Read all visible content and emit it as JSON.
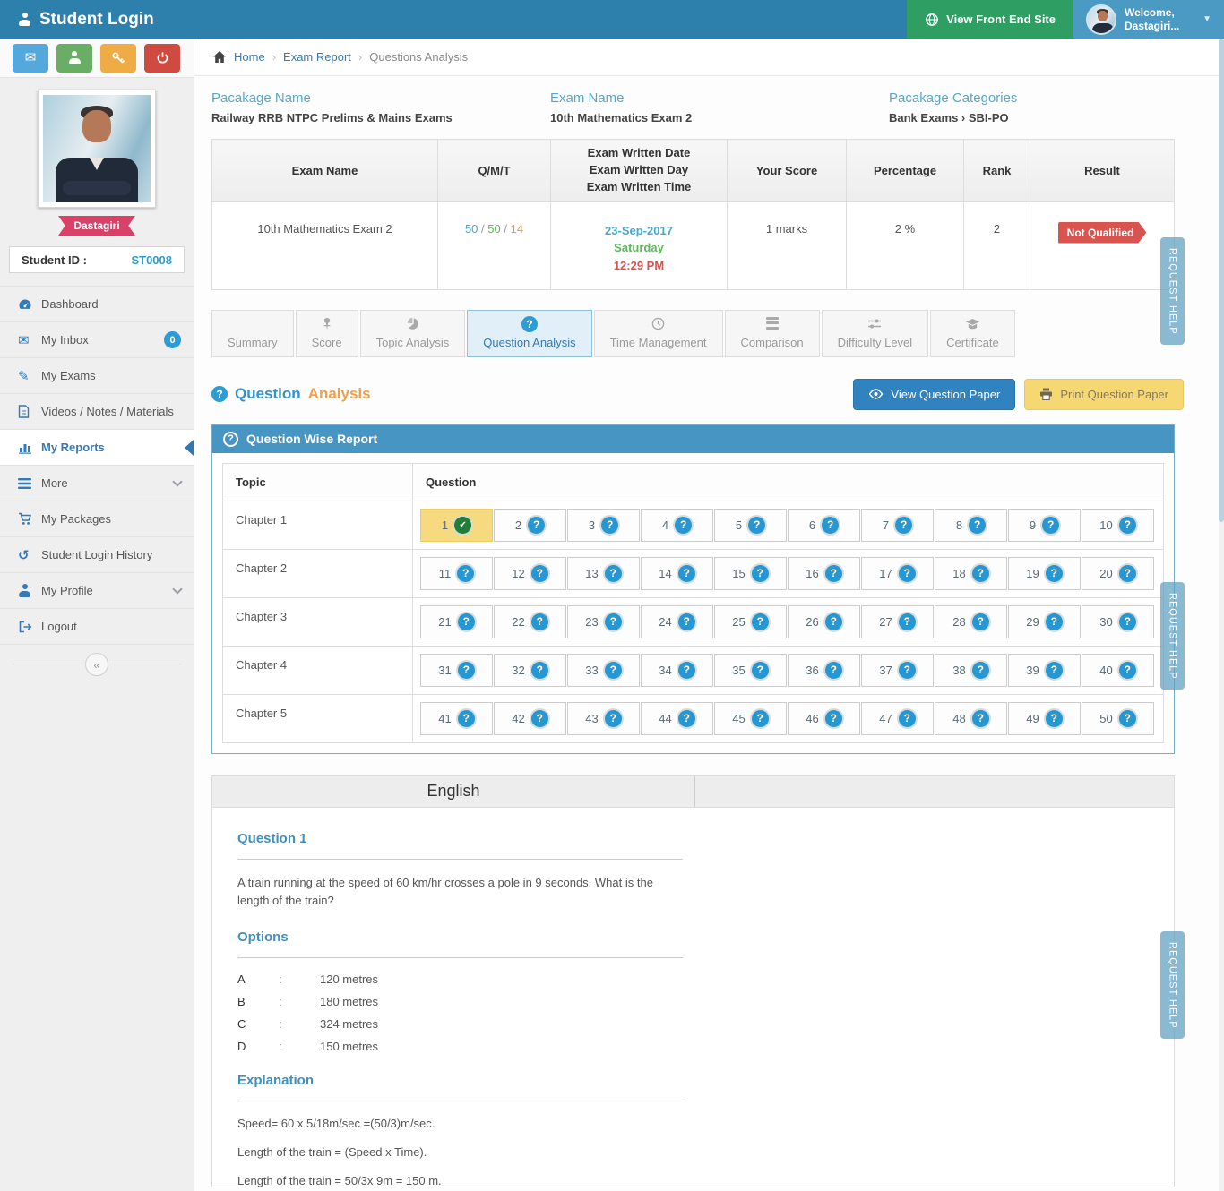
{
  "header": {
    "title": "Student Login",
    "view_front_end": "View Front End Site",
    "welcome_line1": "Welcome,",
    "welcome_line2": "Dastagiri..."
  },
  "breadcrumb": {
    "home": "Home",
    "section": "Exam Report",
    "current": "Questions Analysis"
  },
  "sidebar": {
    "ribbon": "Dastagiri",
    "student_id_label": "Student ID :",
    "student_id_value": "ST0008",
    "menu": [
      {
        "label": "Dashboard"
      },
      {
        "label": "My Inbox",
        "badge": "0"
      },
      {
        "label": "My Exams"
      },
      {
        "label": "Videos / Notes / Materials"
      },
      {
        "label": "My Reports",
        "active": true
      },
      {
        "label": "More"
      },
      {
        "label": "My Packages"
      },
      {
        "label": "Student Login History"
      },
      {
        "label": "My Profile"
      },
      {
        "label": "Logout"
      }
    ],
    "collapse_glyph": "«"
  },
  "info": {
    "package_label": "Pacakage Name",
    "package_value": "Railway RRB NTPC Prelims & Mains Exams",
    "exam_label": "Exam Name",
    "exam_value": "10th Mathematics Exam 2",
    "categories_label": "Pacakage Categories",
    "categories_value": "Bank Exams › SBI-PO",
    "help_label": "Help",
    "help_icon": "?"
  },
  "summary_table": {
    "headers": [
      "Exam Name",
      "Q/M/T",
      [
        "Exam Written Date",
        "Exam Written Day",
        "Exam Written Time"
      ],
      "Your Score",
      "Percentage",
      "Rank",
      "Result"
    ],
    "row": {
      "exam_name": "10th Mathematics Exam 2",
      "qmt": {
        "q": "50",
        "m": "50",
        "t": "14"
      },
      "date": "23-Sep-2017",
      "day": "Saturday",
      "time": "12:29 PM",
      "score": "1 marks",
      "percentage": "2 %",
      "rank": "2",
      "result": "Not Qualified"
    }
  },
  "tabs": [
    {
      "label": "Summary"
    },
    {
      "label": "Score"
    },
    {
      "label": "Topic Analysis"
    },
    {
      "label": "Question Analysis",
      "active": true
    },
    {
      "label": "Time Management"
    },
    {
      "label": "Comparison"
    },
    {
      "label": "Difficulty Level"
    },
    {
      "label": "Certificate"
    }
  ],
  "section": {
    "title_part1": "Question",
    "title_part2": "Analysis",
    "view_button": "View Question Paper",
    "print_button": "Print Question Paper"
  },
  "report": {
    "panel_title": "Question Wise Report",
    "col_topic": "Topic",
    "col_question": "Question",
    "rows": [
      {
        "topic": "Chapter 1",
        "from": 1,
        "to": 10
      },
      {
        "topic": "Chapter 2",
        "from": 11,
        "to": 20
      },
      {
        "topic": "Chapter 3",
        "from": 21,
        "to": 30
      },
      {
        "topic": "Chapter 4",
        "from": 31,
        "to": 40
      },
      {
        "topic": "Chapter 5",
        "from": 41,
        "to": 50
      }
    ],
    "answered": [
      1
    ]
  },
  "question_view": {
    "language_header": "English",
    "question_title": "Question 1",
    "question_text": "A train running at the speed of 60 km/hr crosses a pole in 9 seconds. What is the length of the train?",
    "options_title": "Options",
    "options": [
      {
        "key": "A",
        "colon": ":",
        "value": "120 metres"
      },
      {
        "key": "B",
        "colon": ":",
        "value": "180 metres"
      },
      {
        "key": "C",
        "colon": ":",
        "value": "324 metres"
      },
      {
        "key": "D",
        "colon": ":",
        "value": "150 metres"
      }
    ],
    "explanation_title": "Explanation",
    "explanation_lines": [
      "Speed=   60 x   5/18m/sec =(50/3)m/sec.",
      "Length of the train = (Speed x Time).",
      "Length of the train =   50/3x 9m = 150 m."
    ]
  },
  "request_help_label": "REQUEST HELP",
  "colors": {
    "header_blue": "#2e80ac",
    "green_button": "#2f9e63",
    "accent_blue": "#337ab7",
    "warning_yellow": "#f6d873",
    "danger_red": "#d9534f",
    "ribbon_pink": "#d84168",
    "panel_header_blue": "#4795c2",
    "answered_yellow": "#f7da7f",
    "question_icon_blue": "#2697d0",
    "check_icon_green": "#227d36"
  }
}
